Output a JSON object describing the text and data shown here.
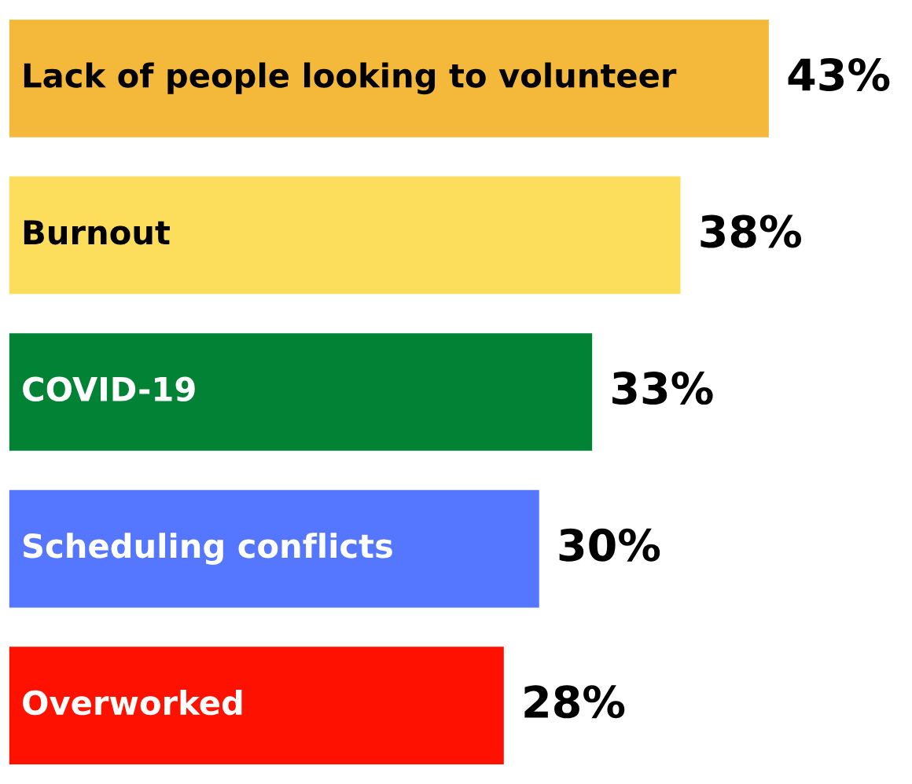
{
  "chart_data": {
    "type": "bar",
    "orientation": "horizontal",
    "categories": [
      "Lack of people looking to volunteer",
      "Burnout",
      "COVID-19",
      "Scheduling conflicts",
      "Overworked"
    ],
    "values": [
      43,
      38,
      33,
      30,
      28
    ],
    "colors": [
      "#f4b93a",
      "#fddd5c",
      "#018235",
      "#5577ff",
      "#ff1100"
    ],
    "value_labels": [
      "43%",
      "38%",
      "33%",
      "30%",
      "28%"
    ]
  }
}
